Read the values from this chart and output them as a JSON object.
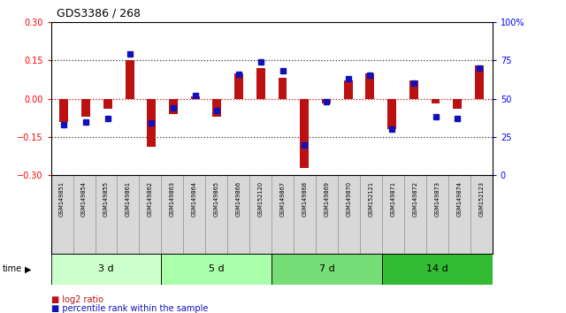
{
  "title": "GDS3386 / 268",
  "samples": [
    "GSM149851",
    "GSM149854",
    "GSM149855",
    "GSM149861",
    "GSM149862",
    "GSM149863",
    "GSM149864",
    "GSM149865",
    "GSM149866",
    "GSM152120",
    "GSM149867",
    "GSM149868",
    "GSM149869",
    "GSM149870",
    "GSM152121",
    "GSM149871",
    "GSM149872",
    "GSM149873",
    "GSM149874",
    "GSM152123"
  ],
  "log2_ratio": [
    -0.09,
    -0.07,
    -0.04,
    0.15,
    -0.19,
    -0.06,
    0.01,
    -0.07,
    0.1,
    0.12,
    0.08,
    -0.27,
    -0.02,
    0.07,
    0.1,
    -0.12,
    0.07,
    -0.02,
    -0.04,
    0.13
  ],
  "percentile_rank": [
    33,
    35,
    37,
    79,
    34,
    44,
    52,
    42,
    66,
    74,
    68,
    20,
    48,
    63,
    65,
    30,
    60,
    38,
    37,
    70
  ],
  "groups": [
    {
      "label": "3 d",
      "start": 0,
      "end": 5,
      "color": "#ccffcc"
    },
    {
      "label": "5 d",
      "start": 5,
      "end": 10,
      "color": "#aaffaa"
    },
    {
      "label": "7 d",
      "start": 10,
      "end": 15,
      "color": "#77dd77"
    },
    {
      "label": "14 d",
      "start": 15,
      "end": 20,
      "color": "#33bb33"
    }
  ],
  "ylim_left": [
    -0.3,
    0.3
  ],
  "ylim_right": [
    0,
    100
  ],
  "yticks_left": [
    -0.3,
    -0.15,
    0.0,
    0.15,
    0.3
  ],
  "yticks_right": [
    0,
    25,
    50,
    75,
    100
  ],
  "bar_color_red": "#bb1111",
  "bar_color_blue": "#1111bb",
  "dotted_line_color": "#333333",
  "zero_line_color": "#cc0000",
  "background_color": "#ffffff",
  "label_log2": "log2 ratio",
  "label_pct": "percentile rank within the sample",
  "bar_width": 0.4
}
